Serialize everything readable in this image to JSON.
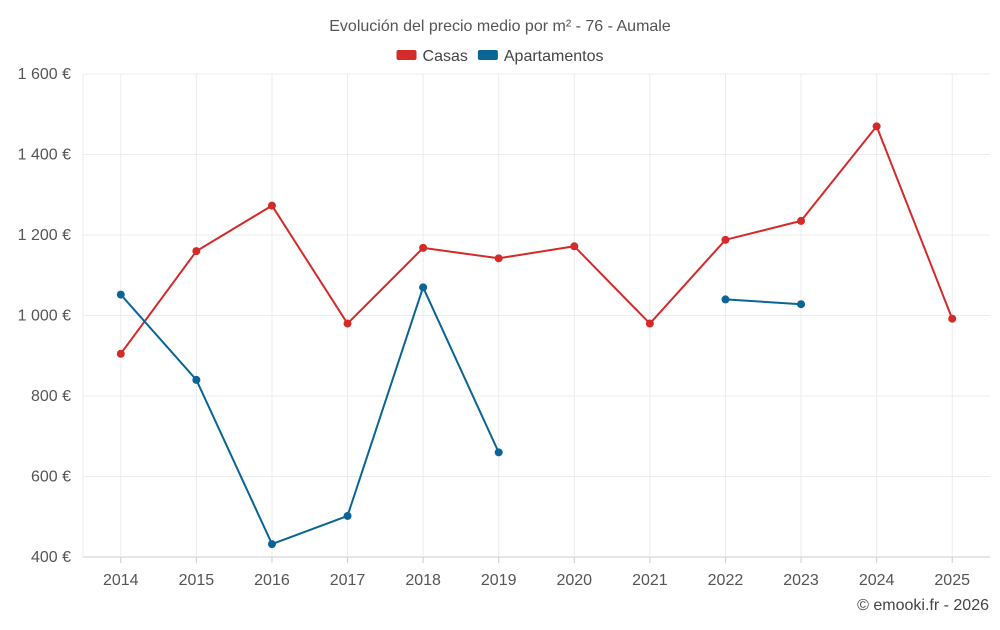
{
  "chart_data": {
    "type": "line",
    "title": "Evolución del precio medio por m² - 76 - Aumale",
    "xlabel": "",
    "ylabel": "",
    "categories": [
      "2014",
      "2015",
      "2016",
      "2017",
      "2018",
      "2019",
      "2020",
      "2021",
      "2022",
      "2023",
      "2024",
      "2025"
    ],
    "ylim": [
      400,
      1600
    ],
    "yticks": [
      400,
      600,
      800,
      1000,
      1200,
      1400,
      1600
    ],
    "ytick_labels": [
      "400 €",
      "600 €",
      "800 €",
      "1 000 €",
      "1 200 €",
      "1 400 €",
      "1 600 €"
    ],
    "grid": true,
    "legend_position": "top-center",
    "series": [
      {
        "name": "Casas",
        "color": "#d42a2a",
        "values": [
          905,
          1160,
          1273,
          980,
          1168,
          1142,
          1172,
          980,
          1188,
          1235,
          1470,
          992
        ]
      },
      {
        "name": "Apartamentos",
        "color": "#0a6496",
        "values": [
          1052,
          840,
          432,
          502,
          1070,
          660,
          null,
          null,
          1040,
          1028,
          null,
          null
        ]
      }
    ],
    "credit": "© emooki.fr - 2026"
  }
}
